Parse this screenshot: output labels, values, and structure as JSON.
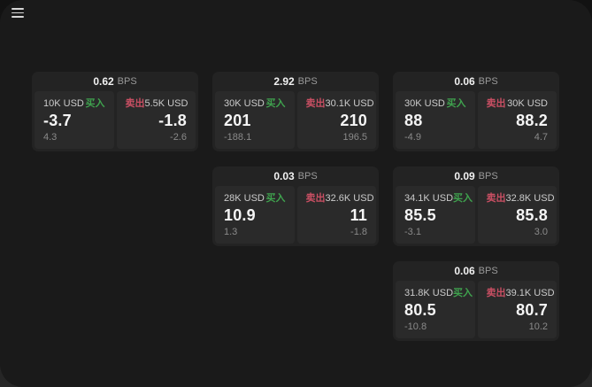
{
  "icons": {
    "menu": "hamburger-menu"
  },
  "colors": {
    "background": "#1a1a1a",
    "card": "#232323",
    "panel": "#2a2a2a",
    "buy_green": "#3fa24e",
    "sell_red": "#c94f63",
    "value_white": "#f5f5f5",
    "muted_gray": "#8a8a8a"
  },
  "labels": {
    "buy": "买入",
    "sell": "卖出",
    "bps": "BPS"
  },
  "cards": [
    {
      "bps": "0.62",
      "buy": {
        "amount": "10K USD",
        "value": "-3.7",
        "delta": "4.3"
      },
      "sell": {
        "amount": "5.5K USD",
        "value": "-1.8",
        "delta": "-2.6"
      }
    },
    {
      "bps": "2.92",
      "buy": {
        "amount": "30K USD",
        "value": "201",
        "delta": "-188.1"
      },
      "sell": {
        "amount": "30.1K USD",
        "value": "210",
        "delta": "196.5"
      }
    },
    {
      "bps": "0.06",
      "buy": {
        "amount": "30K USD",
        "value": "88",
        "delta": "-4.9"
      },
      "sell": {
        "amount": "30K USD",
        "value": "88.2",
        "delta": "4.7"
      }
    },
    {
      "bps": "0.03",
      "buy": {
        "amount": "28K USD",
        "value": "10.9",
        "delta": "1.3"
      },
      "sell": {
        "amount": "32.6K USD",
        "value": "11",
        "delta": "-1.8"
      }
    },
    {
      "bps": "0.09",
      "buy": {
        "amount": "34.1K USD",
        "value": "85.5",
        "delta": "-3.1"
      },
      "sell": {
        "amount": "32.8K USD",
        "value": "85.8",
        "delta": "3.0"
      }
    },
    {
      "bps": "0.06",
      "buy": {
        "amount": "31.8K USD",
        "value": "80.5",
        "delta": "-10.8"
      },
      "sell": {
        "amount": "39.1K USD",
        "value": "80.7",
        "delta": "10.2"
      }
    }
  ]
}
